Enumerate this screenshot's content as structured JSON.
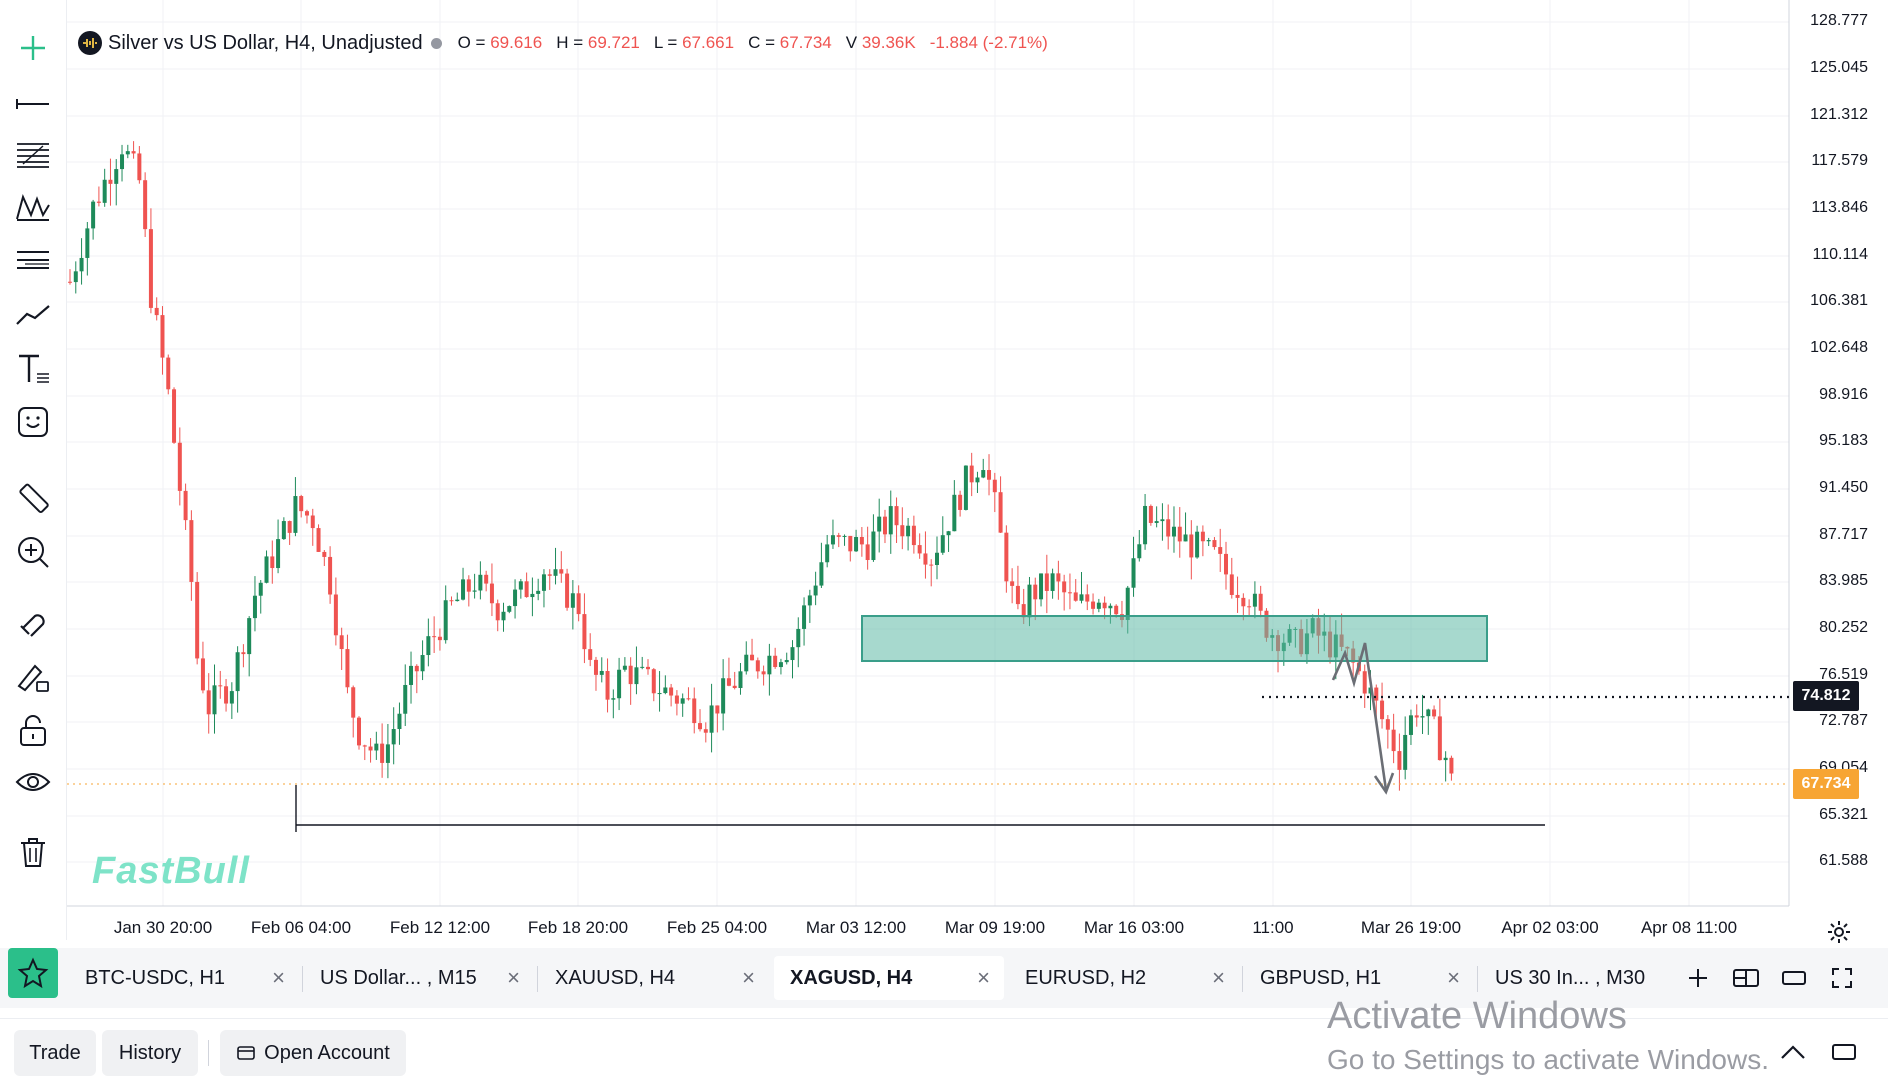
{
  "legend": {
    "title": "Silver vs US Dollar, H4, Unadjusted",
    "o_key": "O =",
    "o_val": "69.616",
    "h_key": "H =",
    "h_val": "69.721",
    "l_key": "L =",
    "l_val": "67.661",
    "c_key": "C =",
    "c_val": "67.734",
    "v_key": "V",
    "v_val": "39.36K",
    "change": "-1.884 (-2.71%)"
  },
  "price_axis": [
    "128.777",
    "125.045",
    "121.312",
    "117.579",
    "113.846",
    "110.114",
    "106.381",
    "102.648",
    "98.916",
    "95.183",
    "91.450",
    "87.717",
    "83.985",
    "80.252",
    "76.519",
    "72.787",
    "69.054",
    "65.321",
    "61.588"
  ],
  "price_tags": {
    "crosshair": "74.812",
    "last": "67.734"
  },
  "time_axis": [
    "Jan 30 20:00",
    "Feb 06 04:00",
    "Feb 12 12:00",
    "Feb 18 20:00",
    "Feb 25 04:00",
    "Mar 03 12:00",
    "Mar 09 19:00",
    "Mar 16 03:00",
    "11:00",
    "Mar 26 19:00",
    "Apr 02 03:00",
    "Apr 08 11:00"
  ],
  "watermark": "FastBull",
  "toolbar_icons": [
    "crosshair-icon",
    "horizontal-line-icon",
    "fib-retracement-icon",
    "pattern-icon",
    "parallel-channel-icon",
    "trend-line-icon",
    "text-icon",
    "emoji-icon",
    "ruler-icon",
    "zoom-in-icon",
    "magnet-icon",
    "lock-drawing-icon",
    "unlock-icon",
    "eye-icon",
    "trash-icon"
  ],
  "tabs": [
    {
      "label": "BTC-USDC, H1"
    },
    {
      "label": "US Dollar... , M15"
    },
    {
      "label": "XAUUSD, H4"
    },
    {
      "label": "XAGUSD, H4"
    },
    {
      "label": "EURUSD, H2"
    },
    {
      "label": "GBPUSD, H1"
    },
    {
      "label": "US 30 In... , M30"
    }
  ],
  "tab_close": "×",
  "bottom": {
    "trade": "Trade",
    "history": "History",
    "open_account": "Open Account"
  },
  "activate": {
    "line1": "Activate Windows",
    "line2": "Go to Settings to activate Windows."
  },
  "colors": {
    "up": "#1e8a5a",
    "down": "#ef5350",
    "zone": "#5fb9a6",
    "accent": "#2bbf8a",
    "last_price": "#f7a534"
  },
  "chart_data": {
    "type": "candlestick",
    "symbol": "XAGUSD",
    "timeframe": "H4",
    "price_range": [
      61.588,
      128.777
    ],
    "path_waypoints": [
      [
        0,
        108
      ],
      [
        4,
        114
      ],
      [
        9,
        119
      ],
      [
        12,
        116
      ],
      [
        14,
        107
      ],
      [
        17,
        99
      ],
      [
        21,
        84
      ],
      [
        22,
        78
      ],
      [
        24,
        74
      ],
      [
        28,
        76
      ],
      [
        32,
        83
      ],
      [
        36,
        87
      ],
      [
        39,
        90
      ],
      [
        42,
        89
      ],
      [
        45,
        84
      ],
      [
        48,
        75
      ],
      [
        50,
        72
      ],
      [
        53,
        70
      ],
      [
        55,
        71
      ],
      [
        58,
        75
      ],
      [
        62,
        79
      ],
      [
        66,
        82
      ],
      [
        70,
        84
      ],
      [
        74,
        82
      ],
      [
        78,
        83
      ],
      [
        82,
        85
      ],
      [
        86,
        83
      ],
      [
        88,
        82
      ],
      [
        90,
        77
      ],
      [
        93,
        75
      ],
      [
        96,
        77
      ],
      [
        100,
        76
      ],
      [
        104,
        75
      ],
      [
        108,
        74
      ],
      [
        110,
        73
      ],
      [
        113,
        75
      ],
      [
        117,
        77
      ],
      [
        121,
        78
      ],
      [
        125,
        79
      ],
      [
        128,
        83
      ],
      [
        131,
        87
      ],
      [
        134,
        87
      ],
      [
        138,
        87
      ],
      [
        142,
        89
      ],
      [
        146,
        88
      ],
      [
        149,
        86
      ],
      [
        152,
        89
      ],
      [
        155,
        92
      ],
      [
        158,
        94
      ],
      [
        160,
        90
      ],
      [
        162,
        85
      ],
      [
        164,
        81
      ],
      [
        166,
        83
      ],
      [
        170,
        84
      ],
      [
        174,
        82
      ],
      [
        178,
        83
      ],
      [
        182,
        82
      ],
      [
        184,
        85
      ],
      [
        186,
        89
      ],
      [
        190,
        88
      ],
      [
        194,
        87
      ],
      [
        198,
        86
      ],
      [
        201,
        84
      ],
      [
        204,
        83
      ],
      [
        206,
        81
      ],
      [
        208,
        80
      ],
      [
        212,
        79
      ],
      [
        215,
        80
      ],
      [
        218,
        79
      ],
      [
        221,
        78
      ],
      [
        224,
        76
      ],
      [
        227,
        73
      ],
      [
        230,
        70
      ],
      [
        231,
        72
      ],
      [
        233,
        74
      ],
      [
        236,
        72
      ],
      [
        238,
        70
      ],
      [
        239,
        68
      ]
    ]
  }
}
